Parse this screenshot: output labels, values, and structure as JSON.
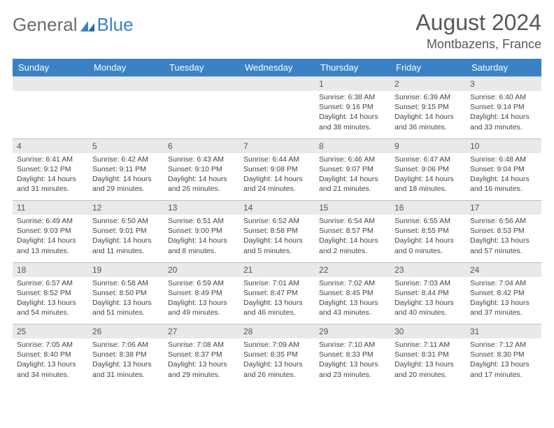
{
  "logo": {
    "text_general": "General",
    "text_blue": "Blue"
  },
  "title": {
    "month": "August 2024",
    "location": "Montbazens, France"
  },
  "colors": {
    "header_bg": "#3b82c4",
    "header_text": "#ffffff",
    "daynum_bg": "#e9e9e9",
    "daynum_border": "#bfbfbf",
    "body_text": "#444444",
    "title_text": "#585858"
  },
  "day_headers": [
    "Sunday",
    "Monday",
    "Tuesday",
    "Wednesday",
    "Thursday",
    "Friday",
    "Saturday"
  ],
  "weeks": [
    [
      {
        "num": "",
        "sunrise": "",
        "sunset": "",
        "daylight": ""
      },
      {
        "num": "",
        "sunrise": "",
        "sunset": "",
        "daylight": ""
      },
      {
        "num": "",
        "sunrise": "",
        "sunset": "",
        "daylight": ""
      },
      {
        "num": "",
        "sunrise": "",
        "sunset": "",
        "daylight": ""
      },
      {
        "num": "1",
        "sunrise": "Sunrise: 6:38 AM",
        "sunset": "Sunset: 9:16 PM",
        "daylight": "Daylight: 14 hours and 38 minutes."
      },
      {
        "num": "2",
        "sunrise": "Sunrise: 6:39 AM",
        "sunset": "Sunset: 9:15 PM",
        "daylight": "Daylight: 14 hours and 36 minutes."
      },
      {
        "num": "3",
        "sunrise": "Sunrise: 6:40 AM",
        "sunset": "Sunset: 9:14 PM",
        "daylight": "Daylight: 14 hours and 33 minutes."
      }
    ],
    [
      {
        "num": "4",
        "sunrise": "Sunrise: 6:41 AM",
        "sunset": "Sunset: 9:12 PM",
        "daylight": "Daylight: 14 hours and 31 minutes."
      },
      {
        "num": "5",
        "sunrise": "Sunrise: 6:42 AM",
        "sunset": "Sunset: 9:11 PM",
        "daylight": "Daylight: 14 hours and 29 minutes."
      },
      {
        "num": "6",
        "sunrise": "Sunrise: 6:43 AM",
        "sunset": "Sunset: 9:10 PM",
        "daylight": "Daylight: 14 hours and 26 minutes."
      },
      {
        "num": "7",
        "sunrise": "Sunrise: 6:44 AM",
        "sunset": "Sunset: 9:08 PM",
        "daylight": "Daylight: 14 hours and 24 minutes."
      },
      {
        "num": "8",
        "sunrise": "Sunrise: 6:46 AM",
        "sunset": "Sunset: 9:07 PM",
        "daylight": "Daylight: 14 hours and 21 minutes."
      },
      {
        "num": "9",
        "sunrise": "Sunrise: 6:47 AM",
        "sunset": "Sunset: 9:06 PM",
        "daylight": "Daylight: 14 hours and 18 minutes."
      },
      {
        "num": "10",
        "sunrise": "Sunrise: 6:48 AM",
        "sunset": "Sunset: 9:04 PM",
        "daylight": "Daylight: 14 hours and 16 minutes."
      }
    ],
    [
      {
        "num": "11",
        "sunrise": "Sunrise: 6:49 AM",
        "sunset": "Sunset: 9:03 PM",
        "daylight": "Daylight: 14 hours and 13 minutes."
      },
      {
        "num": "12",
        "sunrise": "Sunrise: 6:50 AM",
        "sunset": "Sunset: 9:01 PM",
        "daylight": "Daylight: 14 hours and 11 minutes."
      },
      {
        "num": "13",
        "sunrise": "Sunrise: 6:51 AM",
        "sunset": "Sunset: 9:00 PM",
        "daylight": "Daylight: 14 hours and 8 minutes."
      },
      {
        "num": "14",
        "sunrise": "Sunrise: 6:52 AM",
        "sunset": "Sunset: 8:58 PM",
        "daylight": "Daylight: 14 hours and 5 minutes."
      },
      {
        "num": "15",
        "sunrise": "Sunrise: 6:54 AM",
        "sunset": "Sunset: 8:57 PM",
        "daylight": "Daylight: 14 hours and 2 minutes."
      },
      {
        "num": "16",
        "sunrise": "Sunrise: 6:55 AM",
        "sunset": "Sunset: 8:55 PM",
        "daylight": "Daylight: 14 hours and 0 minutes."
      },
      {
        "num": "17",
        "sunrise": "Sunrise: 6:56 AM",
        "sunset": "Sunset: 8:53 PM",
        "daylight": "Daylight: 13 hours and 57 minutes."
      }
    ],
    [
      {
        "num": "18",
        "sunrise": "Sunrise: 6:57 AM",
        "sunset": "Sunset: 8:52 PM",
        "daylight": "Daylight: 13 hours and 54 minutes."
      },
      {
        "num": "19",
        "sunrise": "Sunrise: 6:58 AM",
        "sunset": "Sunset: 8:50 PM",
        "daylight": "Daylight: 13 hours and 51 minutes."
      },
      {
        "num": "20",
        "sunrise": "Sunrise: 6:59 AM",
        "sunset": "Sunset: 8:49 PM",
        "daylight": "Daylight: 13 hours and 49 minutes."
      },
      {
        "num": "21",
        "sunrise": "Sunrise: 7:01 AM",
        "sunset": "Sunset: 8:47 PM",
        "daylight": "Daylight: 13 hours and 46 minutes."
      },
      {
        "num": "22",
        "sunrise": "Sunrise: 7:02 AM",
        "sunset": "Sunset: 8:45 PM",
        "daylight": "Daylight: 13 hours and 43 minutes."
      },
      {
        "num": "23",
        "sunrise": "Sunrise: 7:03 AM",
        "sunset": "Sunset: 8:44 PM",
        "daylight": "Daylight: 13 hours and 40 minutes."
      },
      {
        "num": "24",
        "sunrise": "Sunrise: 7:04 AM",
        "sunset": "Sunset: 8:42 PM",
        "daylight": "Daylight: 13 hours and 37 minutes."
      }
    ],
    [
      {
        "num": "25",
        "sunrise": "Sunrise: 7:05 AM",
        "sunset": "Sunset: 8:40 PM",
        "daylight": "Daylight: 13 hours and 34 minutes."
      },
      {
        "num": "26",
        "sunrise": "Sunrise: 7:06 AM",
        "sunset": "Sunset: 8:38 PM",
        "daylight": "Daylight: 13 hours and 31 minutes."
      },
      {
        "num": "27",
        "sunrise": "Sunrise: 7:08 AM",
        "sunset": "Sunset: 8:37 PM",
        "daylight": "Daylight: 13 hours and 29 minutes."
      },
      {
        "num": "28",
        "sunrise": "Sunrise: 7:09 AM",
        "sunset": "Sunset: 8:35 PM",
        "daylight": "Daylight: 13 hours and 26 minutes."
      },
      {
        "num": "29",
        "sunrise": "Sunrise: 7:10 AM",
        "sunset": "Sunset: 8:33 PM",
        "daylight": "Daylight: 13 hours and 23 minutes."
      },
      {
        "num": "30",
        "sunrise": "Sunrise: 7:11 AM",
        "sunset": "Sunset: 8:31 PM",
        "daylight": "Daylight: 13 hours and 20 minutes."
      },
      {
        "num": "31",
        "sunrise": "Sunrise: 7:12 AM",
        "sunset": "Sunset: 8:30 PM",
        "daylight": "Daylight: 13 hours and 17 minutes."
      }
    ]
  ]
}
